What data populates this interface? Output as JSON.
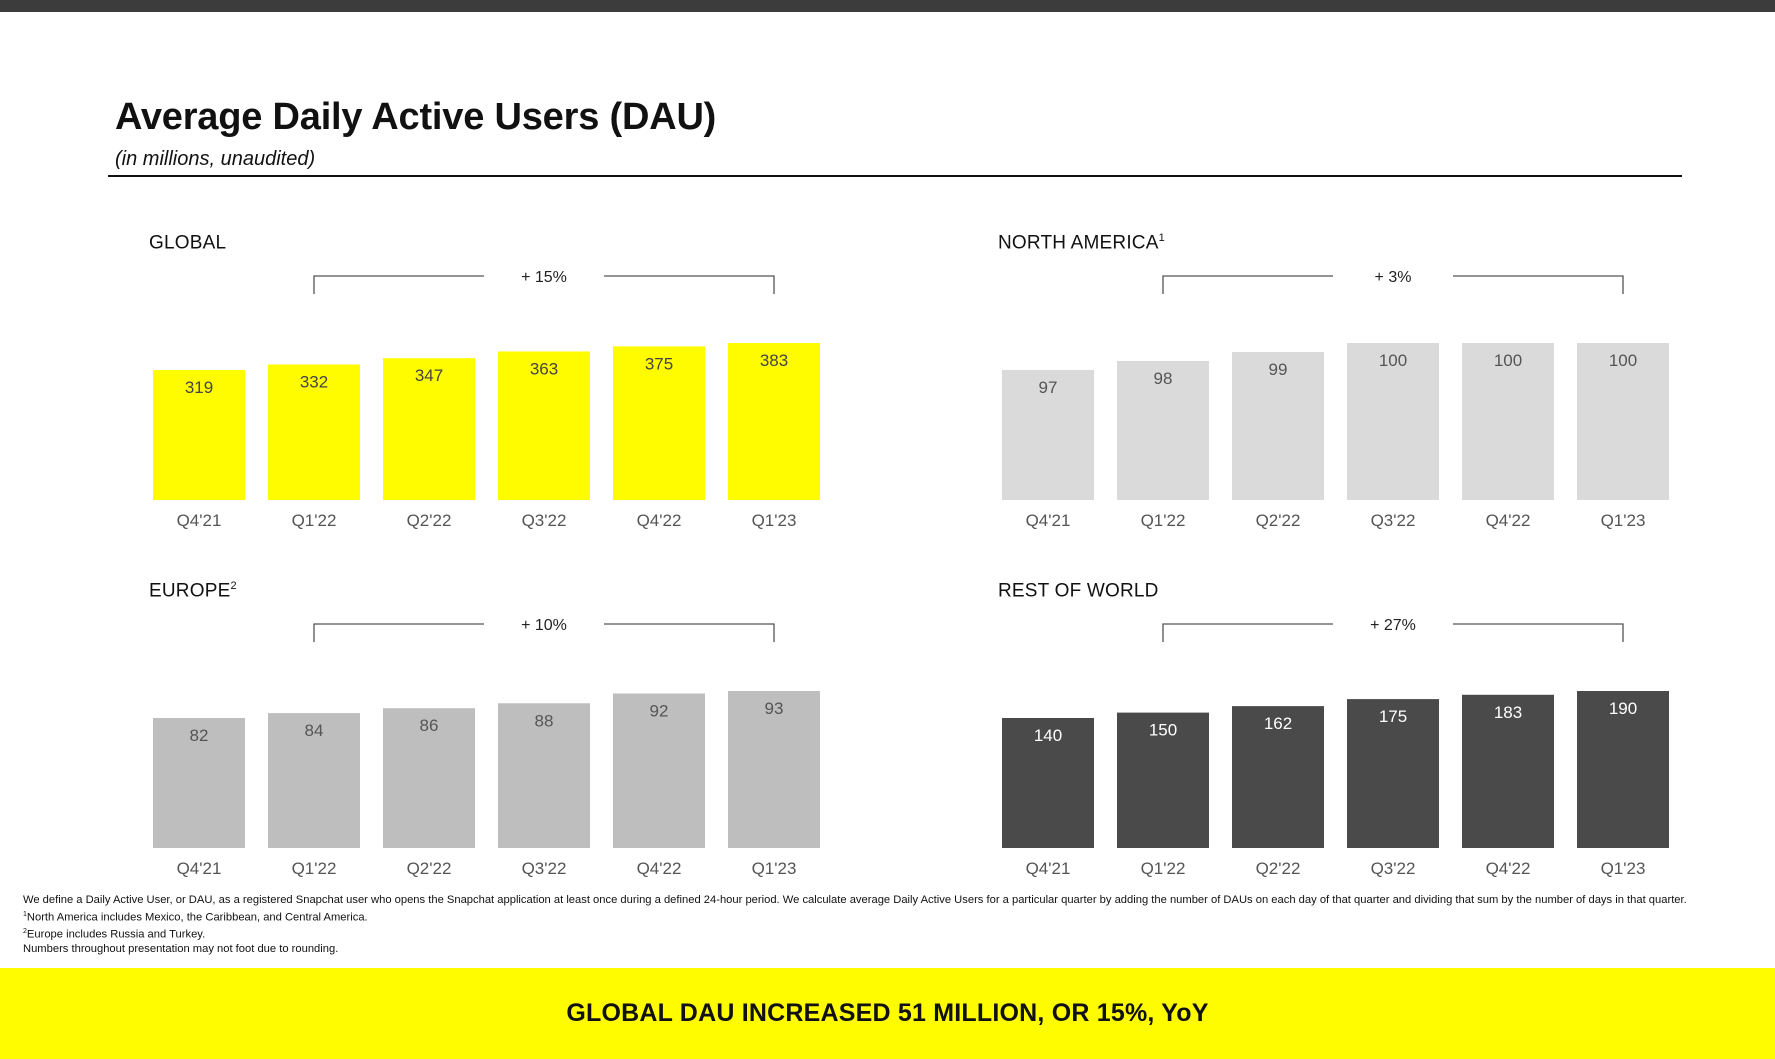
{
  "header": {
    "title": "Average Daily Active Users (DAU)",
    "subtitle": "(in millions, unaudited)"
  },
  "chart_data": [
    {
      "type": "bar",
      "title": "GLOBAL",
      "title_sup": "",
      "categories": [
        "Q4'21",
        "Q1'22",
        "Q2'22",
        "Q3'22",
        "Q4'22",
        "Q1'23"
      ],
      "values": [
        319,
        332,
        347,
        363,
        375,
        383
      ],
      "growth_label": "+ 15%",
      "bar_color": "#FFFC00",
      "label_color": "#444444"
    },
    {
      "type": "bar",
      "title": "NORTH AMERICA",
      "title_sup": "1",
      "categories": [
        "Q4'21",
        "Q1'22",
        "Q2'22",
        "Q3'22",
        "Q4'22",
        "Q1'23"
      ],
      "values": [
        97,
        98,
        99,
        100,
        100,
        100
      ],
      "growth_label": "+ 3%",
      "bar_color": "#DADADA",
      "label_color": "#555555"
    },
    {
      "type": "bar",
      "title": "EUROPE",
      "title_sup": "2",
      "categories": [
        "Q4'21",
        "Q1'22",
        "Q2'22",
        "Q3'22",
        "Q4'22",
        "Q1'23"
      ],
      "values": [
        82,
        84,
        86,
        88,
        92,
        93
      ],
      "growth_label": "+ 10%",
      "bar_color": "#BEBEBE",
      "label_color": "#555555"
    },
    {
      "type": "bar",
      "title": "REST OF WORLD",
      "title_sup": "",
      "categories": [
        "Q4'21",
        "Q1'22",
        "Q2'22",
        "Q3'22",
        "Q4'22",
        "Q1'23"
      ],
      "values": [
        140,
        150,
        162,
        175,
        183,
        190
      ],
      "growth_label": "+ 27%",
      "bar_color": "#4A4A4A",
      "label_color": "#FFFFFF"
    }
  ],
  "footnotes": {
    "definition": "We define a Daily Active User, or DAU, as a registered Snapchat user who opens the Snapchat application at least once during a defined 24-hour period. We calculate average Daily Active Users for a particular quarter by adding the number of DAUs on each day of that quarter and dividing that sum by the number of days in that quarter.",
    "note1_mark": "1",
    "note1": "North America includes Mexico, the Caribbean, and Central America.",
    "note2_mark": "2",
    "note2": "Europe includes Russia and Turkey.",
    "rounding": "Numbers throughout presentation may not foot due to rounding."
  },
  "banner": {
    "text": "GLOBAL DAU INCREASED 51 MILLION, OR 15%, YoY"
  }
}
